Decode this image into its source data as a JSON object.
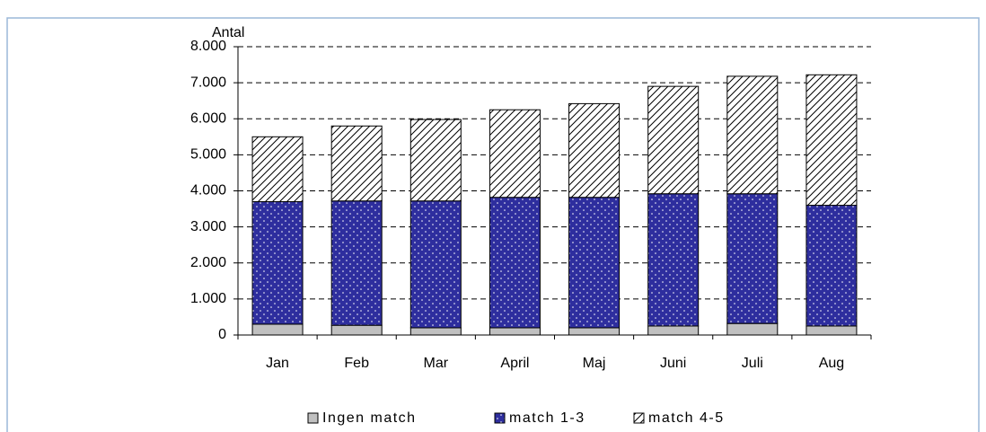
{
  "chart_data": {
    "type": "bar",
    "stacked": true,
    "y_label": "Antal",
    "categories": [
      "Jan",
      "Feb",
      "Mar",
      "April",
      "Maj",
      "Juni",
      "Juli",
      "Aug"
    ],
    "series": [
      {
        "name": "Ingen match",
        "color": "#c0c0c0",
        "values": [
          300,
          270,
          200,
          200,
          200,
          250,
          320,
          250
        ]
      },
      {
        "name": "match 1-3",
        "color": "#2e2e9e",
        "values": [
          3400,
          3450,
          3520,
          3620,
          3620,
          3670,
          3600,
          3350
        ]
      },
      {
        "name": "match 4-5",
        "color": "#ffffff",
        "values": [
          1800,
          2080,
          2260,
          2430,
          2600,
          2980,
          3260,
          3620
        ]
      }
    ],
    "ylim": [
      0,
      8000
    ],
    "yticks": [
      0,
      {
        "value": 1000,
        "label": "1.000"
      },
      {
        "value": 2000,
        "label": "2.000"
      },
      {
        "value": 3000,
        "label": "3.000"
      },
      {
        "value": 4000,
        "label": "4.000"
      },
      {
        "value": 5000,
        "label": "5.000"
      },
      {
        "value": 6000,
        "label": "6.000"
      },
      {
        "value": 7000,
        "label": "7.000"
      },
      {
        "value": 8000,
        "label": "8.000"
      }
    ],
    "grid": true,
    "legend": "bottom"
  }
}
